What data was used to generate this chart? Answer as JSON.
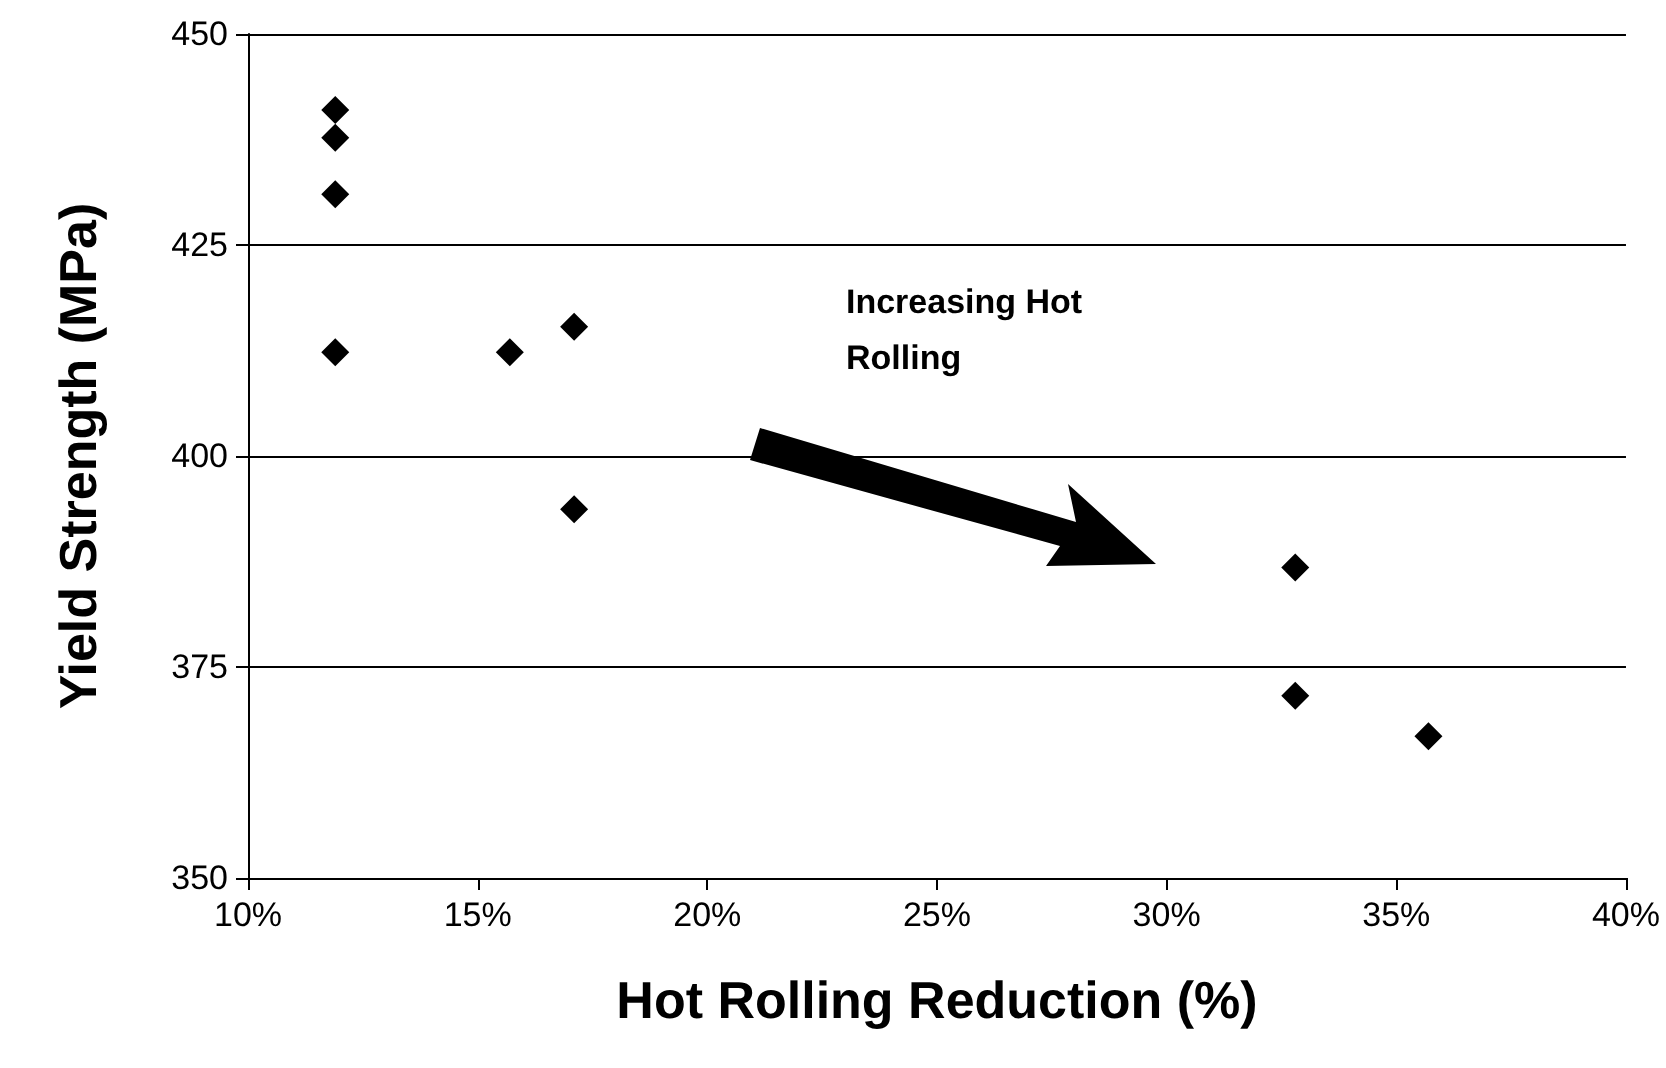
{
  "chart_data": {
    "type": "scatter",
    "xlabel": "Hot Rolling Reduction (%)",
    "ylabel": "Yield Strength (MPa)",
    "annotations": [
      "Increasing Hot Rolling"
    ],
    "x": [
      11.9,
      11.9,
      11.9,
      11.9,
      15.7,
      17.1,
      17.1,
      32.8,
      32.8,
      35.7
    ],
    "values": [
      441,
      437.7,
      431,
      412.3,
      412.3,
      415.3,
      393.7,
      386.8,
      371.6,
      366.8
    ],
    "color": "#000000",
    "marker": "diamond",
    "grid": "y",
    "xlim": [
      10,
      40
    ],
    "xticks": [
      {
        "value": 10,
        "label": "10%"
      },
      {
        "value": 15,
        "label": "15%"
      },
      {
        "value": 20,
        "label": "20%"
      },
      {
        "value": 25,
        "label": "25%"
      },
      {
        "value": 30,
        "label": "30%"
      },
      {
        "value": 35,
        "label": "35%"
      },
      {
        "value": 40,
        "label": "40%"
      }
    ],
    "ylim": [
      350,
      450
    ],
    "yticks": [
      350,
      375,
      400,
      425,
      450
    ]
  }
}
